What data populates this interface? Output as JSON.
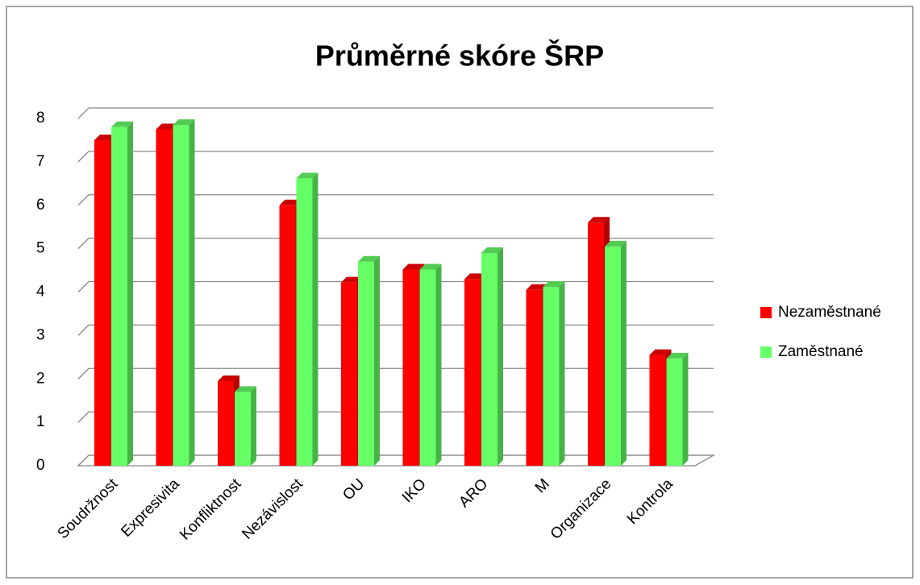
{
  "chart_data": {
    "type": "bar3d",
    "title": "Průměrné skóre ŠRP",
    "categories": [
      "Soudržnost",
      "Expresivita",
      "Konfliktnost",
      "Nezávislost",
      "OU",
      "IKO",
      "ARO",
      "M",
      "Organizace",
      "Kontrola"
    ],
    "series": [
      {
        "name": "Nezaměstnané",
        "color": "#ff0000",
        "values": [
          7.5,
          7.75,
          1.95,
          6.0,
          4.22,
          4.52,
          4.3,
          4.05,
          5.6,
          2.55
        ]
      },
      {
        "name": "Zaměstnané",
        "color": "#66ff66",
        "values": [
          7.8,
          7.85,
          1.7,
          6.62,
          4.7,
          4.52,
          4.9,
          4.12,
          5.05,
          2.47
        ]
      }
    ],
    "ylim": [
      0,
      8
    ],
    "yticks": [
      0,
      1,
      2,
      3,
      4,
      5,
      6,
      7,
      8
    ],
    "grid": true,
    "legend": "right"
  }
}
